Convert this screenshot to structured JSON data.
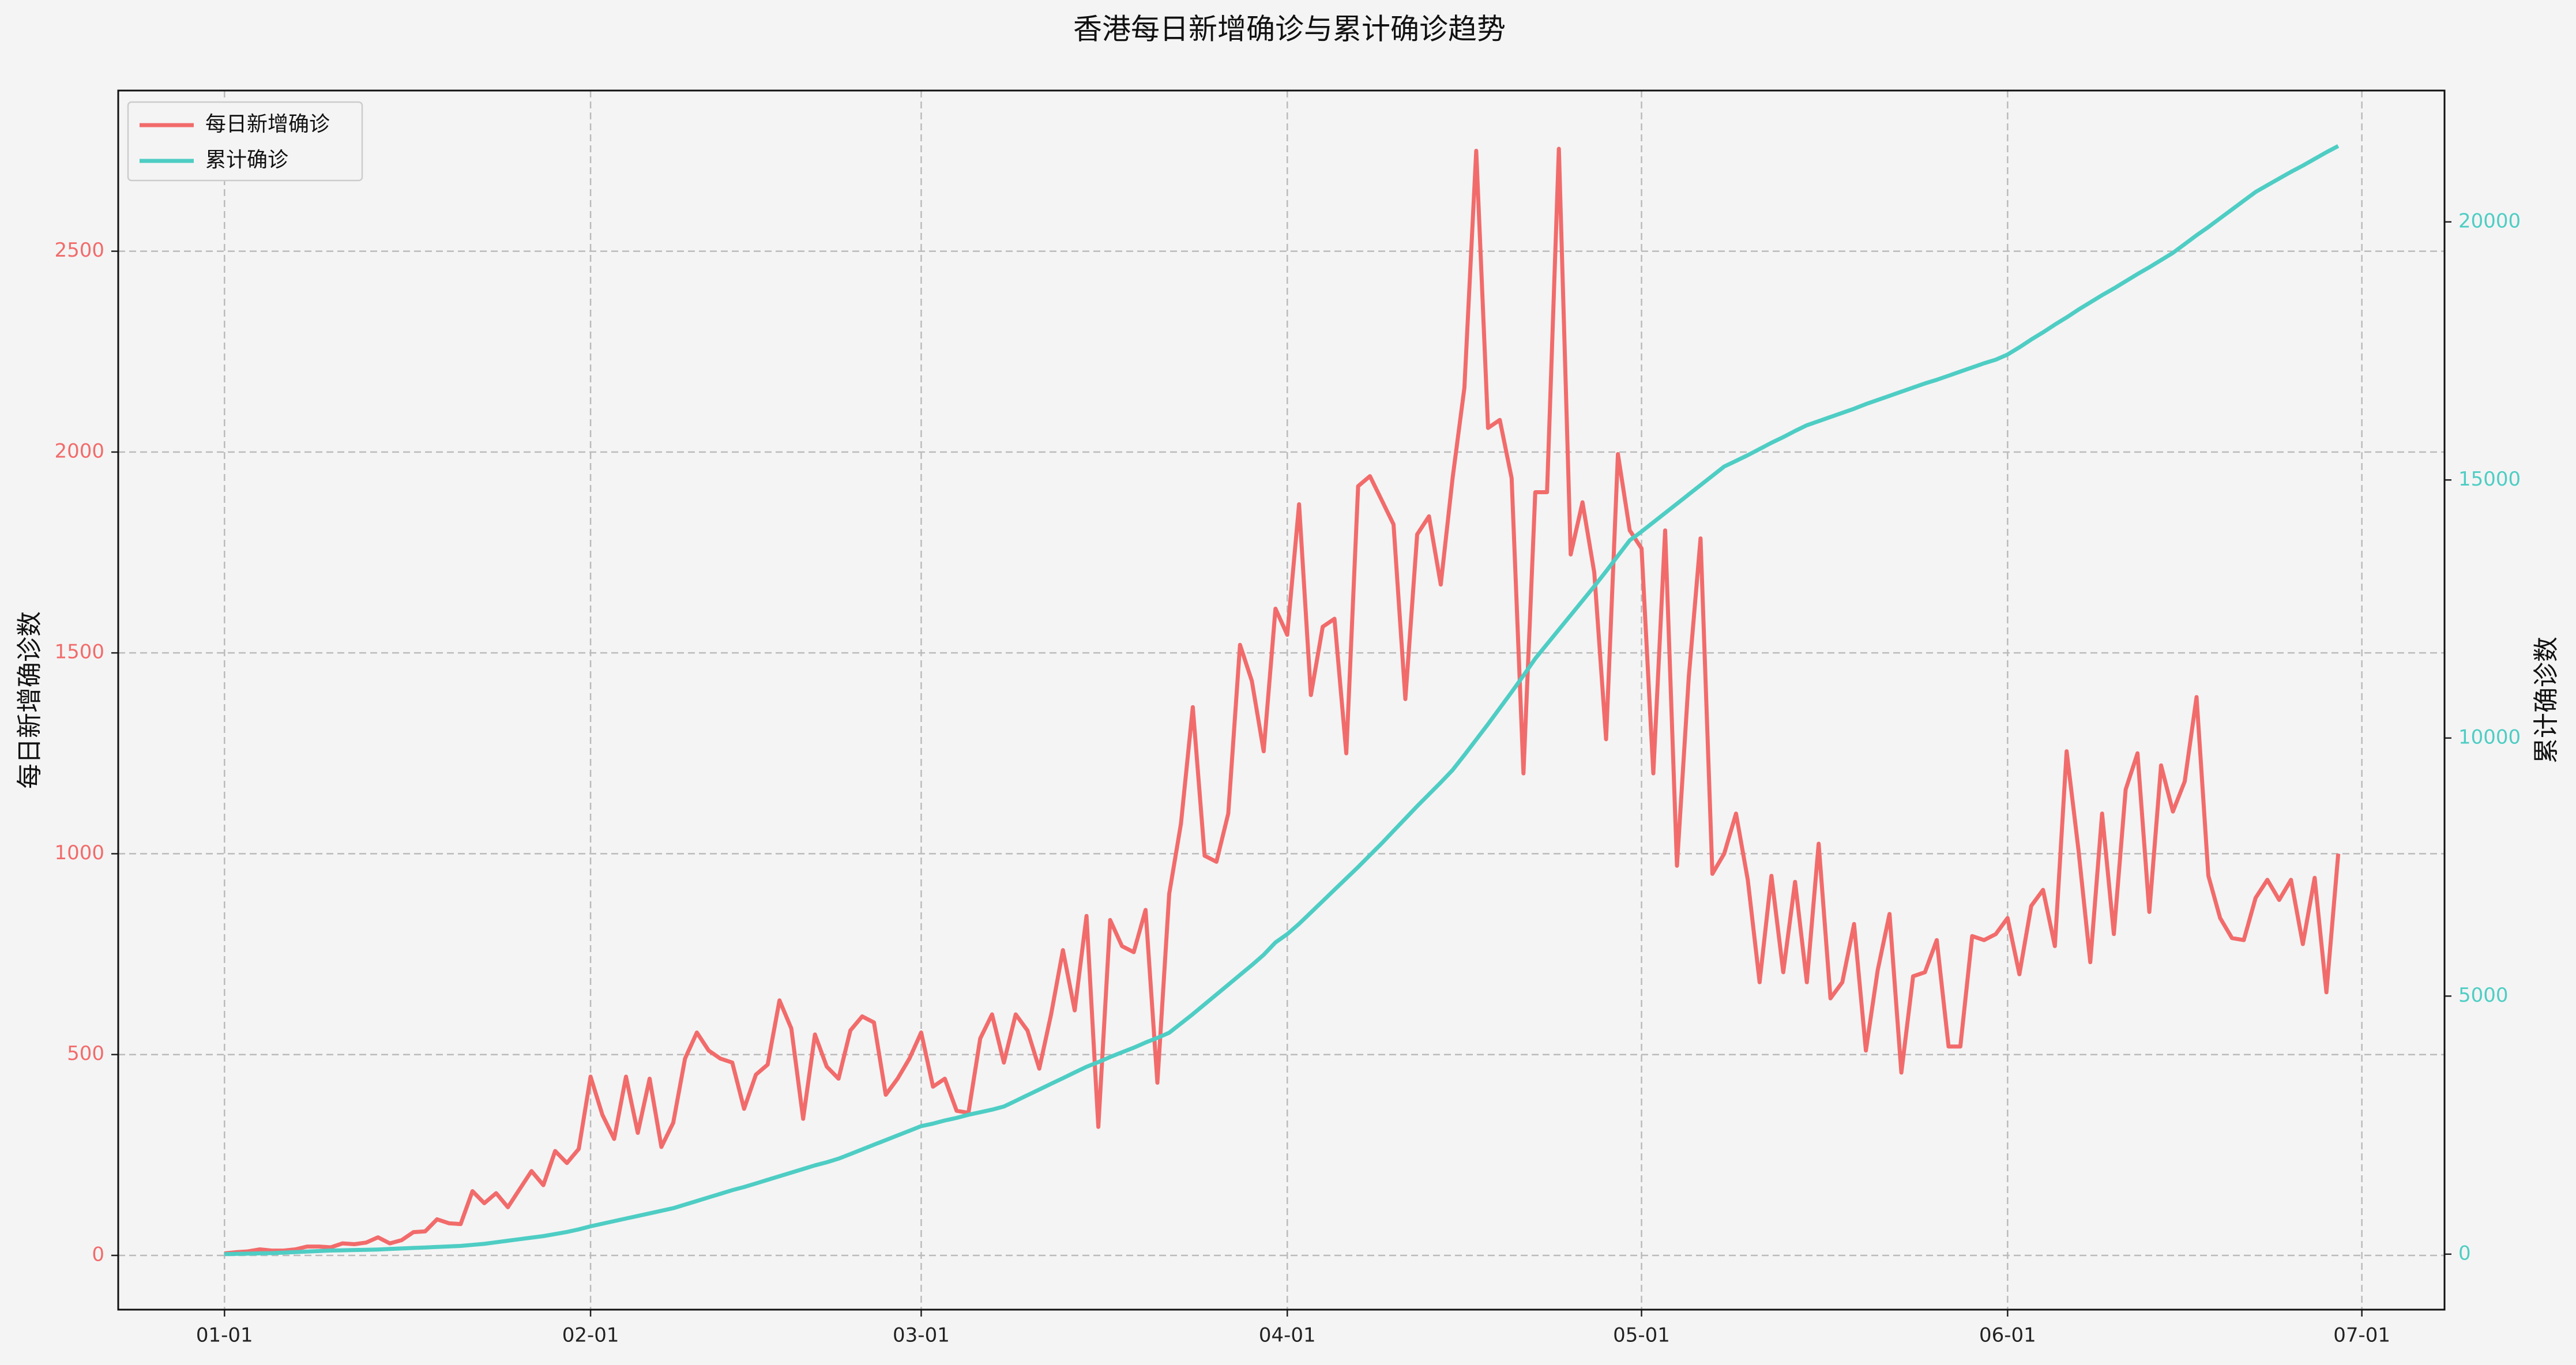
{
  "chart_data": {
    "type": "line",
    "title": "香港每日新增确诊与累计确诊趋势",
    "ylabel": "每日新增确诊数",
    "y2label": "累计确诊数",
    "x": [
      "01-01",
      "01-02",
      "01-03",
      "01-04",
      "01-05",
      "01-06",
      "01-07",
      "01-08",
      "01-09",
      "01-10",
      "01-11",
      "01-12",
      "01-13",
      "01-14",
      "01-15",
      "01-16",
      "01-17",
      "01-18",
      "01-19",
      "01-20",
      "01-21",
      "01-22",
      "01-23",
      "01-24",
      "01-25",
      "01-26",
      "01-27",
      "01-28",
      "01-29",
      "01-30",
      "01-31",
      "02-01",
      "02-02",
      "02-03",
      "02-04",
      "02-05",
      "02-06",
      "02-07",
      "02-08",
      "02-09",
      "02-10",
      "02-11",
      "02-12",
      "02-13",
      "02-14",
      "02-15",
      "02-16",
      "02-17",
      "02-18",
      "02-19",
      "02-20",
      "02-21",
      "02-22",
      "02-23",
      "02-24",
      "02-25",
      "02-26",
      "02-27",
      "02-28",
      "03-01",
      "03-02",
      "03-03",
      "03-04",
      "03-05",
      "03-06",
      "03-07",
      "03-08",
      "03-09",
      "03-10",
      "03-11",
      "03-12",
      "03-13",
      "03-14",
      "03-15",
      "03-16",
      "03-17",
      "03-18",
      "03-19",
      "03-20",
      "03-21",
      "03-22",
      "03-23",
      "03-24",
      "03-25",
      "03-26",
      "03-27",
      "03-28",
      "03-29",
      "03-30",
      "03-31",
      "04-01",
      "04-02",
      "04-03",
      "04-04",
      "04-05",
      "04-06",
      "04-07",
      "04-08",
      "04-09",
      "04-10",
      "04-11",
      "04-12",
      "04-13",
      "04-14",
      "04-15",
      "04-16",
      "04-17",
      "04-18",
      "04-19",
      "04-20",
      "04-21",
      "04-22",
      "04-23",
      "04-24",
      "04-25",
      "04-26",
      "04-27",
      "04-28",
      "04-29",
      "04-30",
      "05-01",
      "05-02",
      "05-03",
      "05-04",
      "05-05",
      "05-06",
      "05-07",
      "05-08",
      "05-09",
      "05-10",
      "05-11",
      "05-12",
      "05-13",
      "05-14",
      "05-15",
      "05-16",
      "05-17",
      "05-18",
      "05-19",
      "05-20",
      "05-21",
      "05-22",
      "05-23",
      "05-24",
      "05-25",
      "05-26",
      "05-27",
      "05-28",
      "05-29",
      "05-30",
      "05-31",
      "06-01",
      "06-02",
      "06-03",
      "06-04",
      "06-05",
      "06-06",
      "06-07",
      "06-08",
      "06-09",
      "06-10",
      "06-11",
      "06-12",
      "06-13",
      "06-14",
      "06-15",
      "06-16",
      "06-17",
      "06-18",
      "06-19",
      "06-20",
      "06-21",
      "06-22",
      "06-23",
      "06-24",
      "06-25",
      "06-26",
      "06-27",
      "06-28",
      "06-29"
    ],
    "series": [
      {
        "name": "每日新增确诊",
        "color": "#f26b6b",
        "values": [
          5,
          8,
          10,
          15,
          12,
          12,
          15,
          22,
          22,
          20,
          30,
          28,
          32,
          45,
          30,
          38,
          58,
          60,
          90,
          80,
          78,
          160,
          130,
          155,
          120,
          165,
          210,
          175,
          260,
          230,
          265,
          445,
          350,
          290,
          445,
          305,
          440,
          270,
          330,
          490,
          555,
          510,
          490,
          480,
          365,
          450,
          475,
          635,
          565,
          340,
          550,
          470,
          440,
          560,
          595,
          580,
          400,
          440,
          490,
          555,
          420,
          440,
          360,
          355,
          540,
          600,
          480,
          600,
          560,
          465,
          600,
          760,
          610,
          845,
          320,
          835,
          770,
          755,
          860,
          430,
          900,
          1075,
          1365,
          995,
          980,
          1100,
          1520,
          1430,
          1255,
          1610,
          1545,
          1870,
          1395,
          1565,
          1585,
          1250,
          1915,
          1940,
          1880,
          1820,
          1385,
          1795,
          1840,
          1670,
          1935,
          2160,
          2750,
          2060,
          2080,
          1935,
          1200,
          1900,
          1900,
          2755,
          1745,
          1875,
          1700,
          1285,
          1995,
          1805,
          1760,
          1200,
          1805,
          970,
          1440,
          1785,
          950,
          1000,
          1100,
          935,
          680,
          945,
          705,
          930,
          680,
          1025,
          640,
          680,
          825,
          510,
          710,
          850,
          455,
          695,
          705,
          785,
          520,
          520,
          795,
          785,
          800,
          840,
          700,
          870,
          910,
          770,
          1255,
          1010,
          730,
          1100,
          800,
          1160,
          1250,
          855,
          1220,
          1105,
          1180,
          1390,
          945,
          840,
          790,
          785,
          890,
          935,
          885,
          935,
          775,
          940,
          655,
          1000
        ]
      },
      {
        "name": "累计确诊",
        "color": "#4ecdc4",
        "axis": "y2",
        "values": [
          0,
          5,
          10,
          15,
          20,
          30,
          40,
          50,
          60,
          70,
          75,
          80,
          85,
          90,
          100,
          110,
          120,
          130,
          140,
          150,
          160,
          180,
          200,
          230,
          260,
          290,
          320,
          350,
          390,
          430,
          480,
          540,
          590,
          640,
          690,
          740,
          790,
          840,
          890,
          960,
          1030,
          1100,
          1170,
          1240,
          1300,
          1370,
          1440,
          1510,
          1580,
          1650,
          1720,
          1780,
          1850,
          1940,
          2030,
          2120,
          2210,
          2300,
          2390,
          2480,
          2530,
          2590,
          2640,
          2700,
          2750,
          2800,
          2860,
          2970,
          3080,
          3190,
          3300,
          3410,
          3520,
          3630,
          3720,
          3820,
          3910,
          4000,
          4100,
          4190,
          4290,
          4470,
          4650,
          4840,
          5030,
          5220,
          5410,
          5600,
          5800,
          6040,
          6200,
          6400,
          6620,
          6840,
          7060,
          7280,
          7500,
          7730,
          7960,
          8200,
          8440,
          8680,
          8910,
          9140,
          9380,
          9670,
          9970,
          10270,
          10580,
          10890,
          11210,
          11540,
          11820,
          12100,
          12380,
          12660,
          12940,
          13230,
          13530,
          13830,
          14000,
          14180,
          14360,
          14540,
          14720,
          14900,
          15080,
          15260,
          15370,
          15480,
          15600,
          15720,
          15830,
          15950,
          16060,
          16140,
          16220,
          16300,
          16380,
          16470,
          16550,
          16630,
          16710,
          16790,
          16870,
          16940,
          17020,
          17100,
          17180,
          17260,
          17330,
          17430,
          17570,
          17720,
          17860,
          18010,
          18150,
          18300,
          18440,
          18580,
          18710,
          18850,
          18990,
          19120,
          19260,
          19400,
          19570,
          19740,
          19900,
          20070,
          20240,
          20410,
          20580,
          20710,
          20840,
          20970,
          21090,
          21220,
          21350,
          21470
        ]
      }
    ],
    "xlim": [
      "12-23",
      "07-08"
    ],
    "xticks": [
      "01-01",
      "02-01",
      "03-01",
      "04-01",
      "05-01",
      "06-01",
      "07-01"
    ],
    "ylim": [
      -135,
      2900
    ],
    "yticks": [
      0,
      500,
      1000,
      1500,
      2000,
      2500
    ],
    "y2lim": [
      -1075,
      22545
    ],
    "y2ticks": [
      0,
      5000,
      10000,
      15000,
      20000
    ],
    "grid": true,
    "legend": "upper left"
  }
}
